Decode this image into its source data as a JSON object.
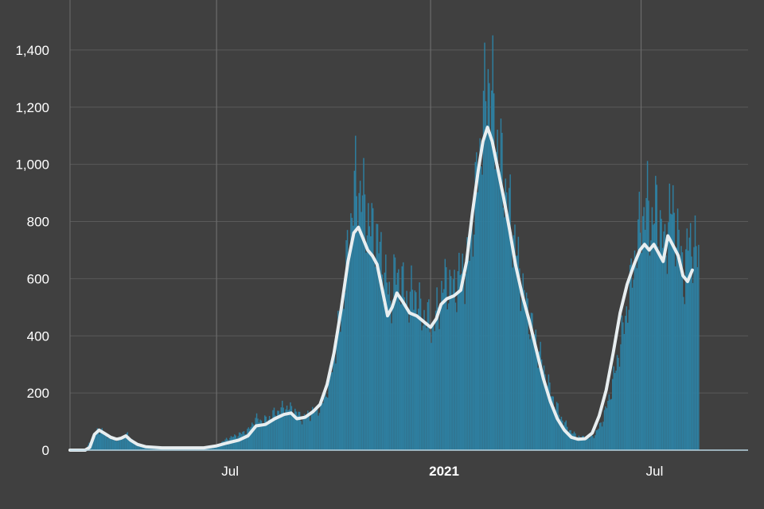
{
  "chart_data": {
    "type": "bar",
    "title": "",
    "xlabel": "",
    "ylabel": "",
    "ylim": [
      0,
      1500
    ],
    "y_ticks": [
      0,
      200,
      400,
      600,
      800,
      1000,
      1200,
      1400
    ],
    "y_tick_labels": [
      "0",
      "200",
      "400",
      "600",
      "800",
      "1,000",
      "1,200",
      "1,400"
    ],
    "x_ticks": [
      {
        "date": "2020-07-01",
        "label": "Jul",
        "bold": false
      },
      {
        "date": "2021-01-01",
        "label": "2021",
        "bold": true
      },
      {
        "date": "2021-07-01",
        "label": "Jul",
        "bold": false
      }
    ],
    "x_range": [
      "2020-02-26",
      "2021-10-01"
    ],
    "grid": {
      "horizontal": true,
      "vertical": true
    },
    "legend": "none",
    "colors": {
      "background": "#404040",
      "bars": "#2e7fa0",
      "line": "#e8eef0",
      "gridline": "#5a5a5a",
      "major_gridline": "#6c6c6c",
      "tick_text": "#ffffff"
    },
    "series": [
      {
        "kind": "daily bars",
        "points": [
          [
            "2020-02-26",
            0
          ],
          [
            "2020-03-10",
            0
          ],
          [
            "2020-03-15",
            40
          ],
          [
            "2020-03-20",
            70
          ],
          [
            "2020-03-25",
            65
          ],
          [
            "2020-04-01",
            40
          ],
          [
            "2020-04-05",
            35
          ],
          [
            "2020-04-10",
            40
          ],
          [
            "2020-04-13",
            60
          ],
          [
            "2020-04-17",
            45
          ],
          [
            "2020-04-22",
            25
          ],
          [
            "2020-05-01",
            12
          ],
          [
            "2020-05-15",
            10
          ],
          [
            "2020-06-15",
            10
          ],
          [
            "2020-06-30",
            15
          ],
          [
            "2020-07-10",
            40
          ],
          [
            "2020-07-20",
            55
          ],
          [
            "2020-07-28",
            70
          ],
          [
            "2020-08-03",
            110
          ],
          [
            "2020-08-10",
            100
          ],
          [
            "2020-08-20",
            130
          ],
          [
            "2020-08-28",
            150
          ],
          [
            "2020-09-05",
            140
          ],
          [
            "2020-09-12",
            110
          ],
          [
            "2020-09-20",
            130
          ],
          [
            "2020-09-28",
            150
          ],
          [
            "2020-10-05",
            230
          ],
          [
            "2020-10-12",
            380
          ],
          [
            "2020-10-18",
            550
          ],
          [
            "2020-10-24",
            800
          ],
          [
            "2020-10-28",
            930
          ],
          [
            "2020-11-01",
            900
          ],
          [
            "2020-11-05",
            860
          ],
          [
            "2020-11-09",
            780
          ],
          [
            "2020-11-14",
            760
          ],
          [
            "2020-11-18",
            700
          ],
          [
            "2020-11-22",
            620
          ],
          [
            "2020-11-27",
            520
          ],
          [
            "2020-12-01",
            620
          ],
          [
            "2020-12-06",
            590
          ],
          [
            "2020-12-12",
            520
          ],
          [
            "2020-12-18",
            560
          ],
          [
            "2020-12-23",
            480
          ],
          [
            "2020-12-29",
            460
          ],
          [
            "2021-01-03",
            430
          ],
          [
            "2021-01-08",
            520
          ],
          [
            "2021-01-14",
            600
          ],
          [
            "2021-01-20",
            560
          ],
          [
            "2021-01-26",
            620
          ],
          [
            "2021-02-01",
            640
          ],
          [
            "2021-02-06",
            800
          ],
          [
            "2021-02-11",
            1000
          ],
          [
            "2021-02-16",
            1200
          ],
          [
            "2021-02-19",
            1310
          ],
          [
            "2021-02-22",
            1250
          ],
          [
            "2021-02-26",
            1100
          ],
          [
            "2021-03-03",
            980
          ],
          [
            "2021-03-08",
            870
          ],
          [
            "2021-03-13",
            760
          ],
          [
            "2021-03-18",
            620
          ],
          [
            "2021-03-23",
            520
          ],
          [
            "2021-03-29",
            430
          ],
          [
            "2021-04-04",
            340
          ],
          [
            "2021-04-10",
            250
          ],
          [
            "2021-04-16",
            180
          ],
          [
            "2021-04-22",
            120
          ],
          [
            "2021-04-28",
            80
          ],
          [
            "2021-05-04",
            55
          ],
          [
            "2021-05-10",
            45
          ],
          [
            "2021-05-16",
            40
          ],
          [
            "2021-05-22",
            55
          ],
          [
            "2021-05-28",
            100
          ],
          [
            "2021-06-03",
            180
          ],
          [
            "2021-06-09",
            290
          ],
          [
            "2021-06-15",
            420
          ],
          [
            "2021-06-21",
            560
          ],
          [
            "2021-06-26",
            700
          ],
          [
            "2021-07-01",
            800
          ],
          [
            "2021-07-05",
            870
          ],
          [
            "2021-07-09",
            790
          ],
          [
            "2021-07-13",
            840
          ],
          [
            "2021-07-17",
            800
          ],
          [
            "2021-07-21",
            690
          ],
          [
            "2021-07-25",
            840
          ],
          [
            "2021-07-29",
            820
          ],
          [
            "2021-08-03",
            700
          ],
          [
            "2021-08-07",
            600
          ],
          [
            "2021-08-11",
            760
          ],
          [
            "2021-08-15",
            690
          ],
          [
            "2021-08-19",
            700
          ]
        ]
      },
      {
        "kind": "rolling average line",
        "points": [
          [
            "2020-02-26",
            0
          ],
          [
            "2020-03-10",
            0
          ],
          [
            "2020-03-14",
            10
          ],
          [
            "2020-03-18",
            55
          ],
          [
            "2020-03-22",
            70
          ],
          [
            "2020-03-27",
            58
          ],
          [
            "2020-04-01",
            45
          ],
          [
            "2020-04-06",
            38
          ],
          [
            "2020-04-10",
            42
          ],
          [
            "2020-04-14",
            50
          ],
          [
            "2020-04-18",
            35
          ],
          [
            "2020-04-24",
            20
          ],
          [
            "2020-05-01",
            12
          ],
          [
            "2020-05-15",
            8
          ],
          [
            "2020-06-01",
            8
          ],
          [
            "2020-06-20",
            8
          ],
          [
            "2020-07-01",
            15
          ],
          [
            "2020-07-10",
            25
          ],
          [
            "2020-07-20",
            35
          ],
          [
            "2020-07-28",
            50
          ],
          [
            "2020-08-04",
            85
          ],
          [
            "2020-08-12",
            90
          ],
          [
            "2020-08-20",
            110
          ],
          [
            "2020-08-28",
            125
          ],
          [
            "2020-09-03",
            130
          ],
          [
            "2020-09-08",
            110
          ],
          [
            "2020-09-15",
            115
          ],
          [
            "2020-09-22",
            135
          ],
          [
            "2020-09-28",
            160
          ],
          [
            "2020-10-04",
            230
          ],
          [
            "2020-10-10",
            340
          ],
          [
            "2020-10-16",
            490
          ],
          [
            "2020-10-22",
            660
          ],
          [
            "2020-10-27",
            760
          ],
          [
            "2020-10-31",
            780
          ],
          [
            "2020-11-04",
            740
          ],
          [
            "2020-11-08",
            700
          ],
          [
            "2020-11-12",
            680
          ],
          [
            "2020-11-16",
            650
          ],
          [
            "2020-11-20",
            570
          ],
          [
            "2020-11-25",
            470
          ],
          [
            "2020-11-29",
            500
          ],
          [
            "2020-12-03",
            550
          ],
          [
            "2020-12-08",
            520
          ],
          [
            "2020-12-14",
            480
          ],
          [
            "2020-12-20",
            470
          ],
          [
            "2020-12-26",
            450
          ],
          [
            "2021-01-01",
            430
          ],
          [
            "2021-01-06",
            460
          ],
          [
            "2021-01-10",
            510
          ],
          [
            "2021-01-15",
            530
          ],
          [
            "2021-01-21",
            540
          ],
          [
            "2021-01-27",
            560
          ],
          [
            "2021-02-01",
            660
          ],
          [
            "2021-02-06",
            830
          ],
          [
            "2021-02-11",
            980
          ],
          [
            "2021-02-15",
            1080
          ],
          [
            "2021-02-19",
            1130
          ],
          [
            "2021-02-23",
            1080
          ],
          [
            "2021-02-28",
            980
          ],
          [
            "2021-03-05",
            880
          ],
          [
            "2021-03-10",
            770
          ],
          [
            "2021-03-15",
            650
          ],
          [
            "2021-03-21",
            540
          ],
          [
            "2021-03-27",
            450
          ],
          [
            "2021-04-02",
            350
          ],
          [
            "2021-04-08",
            250
          ],
          [
            "2021-04-14",
            170
          ],
          [
            "2021-04-20",
            110
          ],
          [
            "2021-04-26",
            70
          ],
          [
            "2021-05-02",
            45
          ],
          [
            "2021-05-08",
            38
          ],
          [
            "2021-05-14",
            40
          ],
          [
            "2021-05-20",
            60
          ],
          [
            "2021-05-26",
            120
          ],
          [
            "2021-06-01",
            210
          ],
          [
            "2021-06-07",
            340
          ],
          [
            "2021-06-13",
            480
          ],
          [
            "2021-06-19",
            580
          ],
          [
            "2021-06-25",
            650
          ],
          [
            "2021-06-30",
            700
          ],
          [
            "2021-07-04",
            720
          ],
          [
            "2021-07-08",
            700
          ],
          [
            "2021-07-12",
            720
          ],
          [
            "2021-07-16",
            690
          ],
          [
            "2021-07-20",
            660
          ],
          [
            "2021-07-24",
            750
          ],
          [
            "2021-07-28",
            720
          ],
          [
            "2021-08-02",
            680
          ],
          [
            "2021-08-06",
            610
          ],
          [
            "2021-08-10",
            590
          ],
          [
            "2021-08-14",
            630
          ]
        ]
      }
    ]
  }
}
